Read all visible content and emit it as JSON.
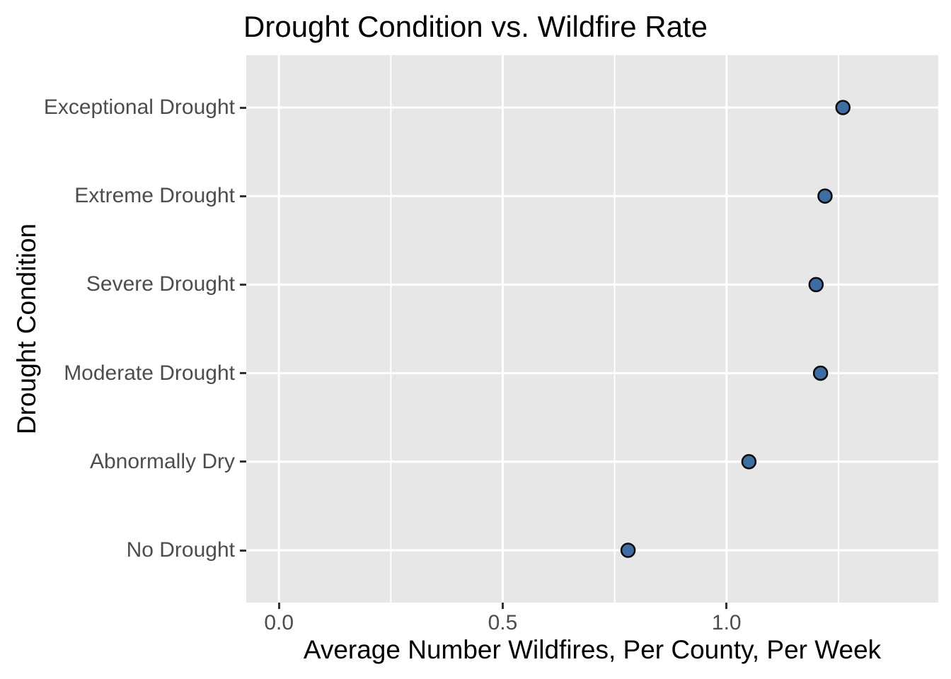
{
  "chart_data": {
    "type": "scatter",
    "orientation": "horizontal",
    "title": "Drought Condition vs. Wildfire Rate",
    "xlabel": "Average Number Wildfires, Per County, Per Week",
    "ylabel": "Drought Condition",
    "categories": [
      "Exceptional Drought",
      "Extreme Drought",
      "Severe Drought",
      "Moderate Drought",
      "Abnormally Dry",
      "No Drought"
    ],
    "values": [
      1.26,
      1.22,
      1.2,
      1.21,
      1.05,
      0.78
    ],
    "x_ticks": {
      "values": [
        0.0,
        0.5,
        1.0
      ],
      "labels": [
        "0.0",
        "0.5",
        "1.0"
      ]
    },
    "x_minor_gridlines": [
      0.25,
      0.75,
      1.25
    ],
    "xlim_panel": [
      -0.073,
      1.473
    ],
    "grid": true,
    "legend": false,
    "colors": {
      "point_fill": "#3c6da3",
      "point_stroke": "#0a0a0a",
      "panel_background": "#e7e7e7",
      "gridline": "#ffffff",
      "tick_label_text": "#4d4d4d",
      "axis_title_text": "#000000",
      "title_text": "#000000"
    }
  }
}
